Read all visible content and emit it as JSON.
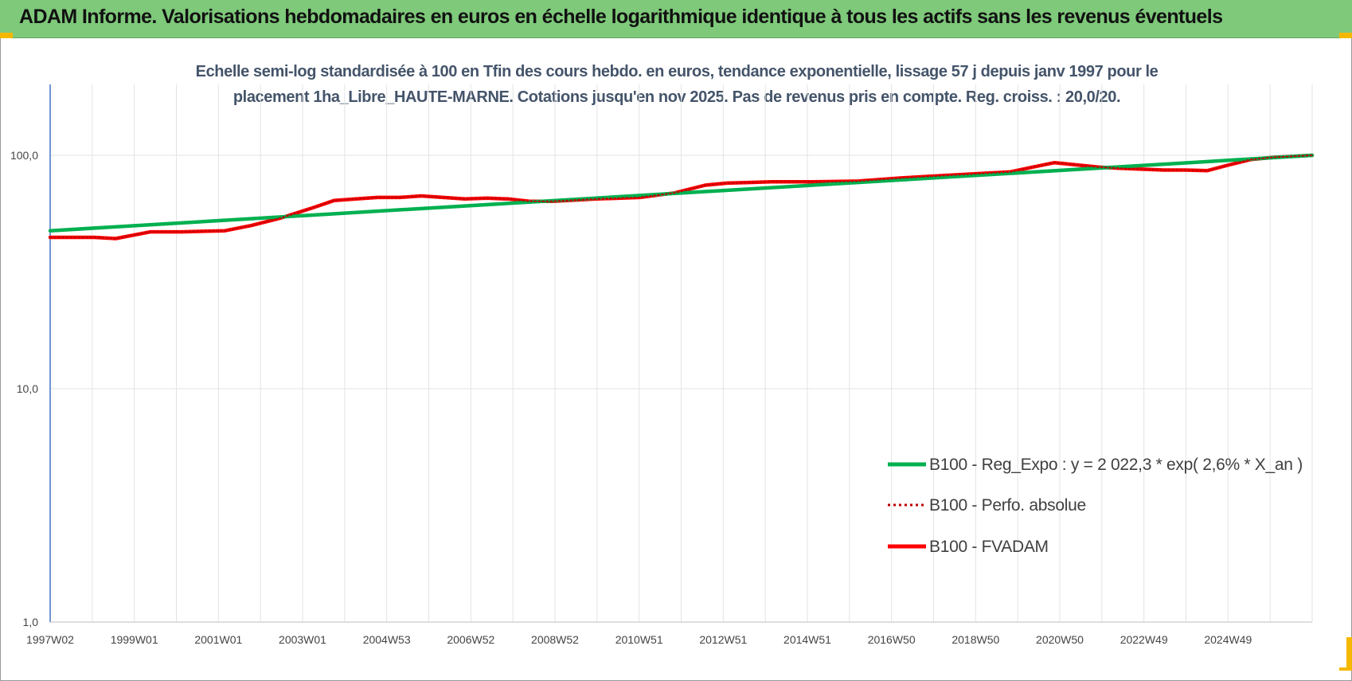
{
  "header": {
    "title": "ADAM Informe. Valorisations hebdomadaires en euros en échelle logarithmique identique à tous les actifs sans les revenus éventuels"
  },
  "chart_data": {
    "type": "line",
    "subtitle_line1": "Echelle semi-log standardisée à 100 en Tfin des cours hebdo. en euros, tendance exponentielle, lissage 57 j depuis janv 1997 pour le",
    "subtitle_line2": "placement 1ha_Libre_HAUTE-MARNE. Cotations jusqu'en nov 2025. Pas de revenus pris en compte. Reg. croiss. : 20,0/20.",
    "y_scale": "log",
    "ylim": [
      1,
      100
    ],
    "y_ticks": [
      "1,0",
      "10,0",
      "100,0"
    ],
    "x_range": [
      1997.0,
      2025.9
    ],
    "x_ticks": [
      "1997W02",
      "1999W01",
      "2001W01",
      "2003W01",
      "2004W53",
      "2006W52",
      "2008W52",
      "2010W51",
      "2012W51",
      "2014W51",
      "2016W50",
      "2018W50",
      "2020W50",
      "2022W49",
      "2024W49"
    ],
    "grid": true,
    "legend_position": "bottom-right",
    "series": [
      {
        "name": "B100 - Reg_Expo : y = 2 022,3 * exp( 2,6% *  X_an )",
        "color": "#00b050",
        "style": "solid",
        "x": [
          1997.0,
          2025.9
        ],
        "values": [
          47.5,
          100.0
        ]
      },
      {
        "name": "B100 - Perfo. absolue",
        "color": "#c00000",
        "style": "dotted",
        "x": [
          1997.0,
          1998.0,
          1998.5,
          1999.3,
          2000.0,
          2001.0,
          2001.6,
          2002.3,
          2003.0,
          2003.5,
          2004.0,
          2004.5,
          2005.0,
          2005.5,
          2006.0,
          2006.5,
          2007.0,
          2007.5,
          2008.0,
          2008.5,
          2009.5,
          2010.5,
          2011.3,
          2012.0,
          2012.5,
          2013.0,
          2013.5,
          2014.5,
          2015.5,
          2016.5,
          2017.5,
          2018.5,
          2019.0,
          2019.5,
          2020.0,
          2020.5,
          2021.0,
          2021.5,
          2022.5,
          2023.0,
          2023.5,
          2024.0,
          2024.5,
          2025.0,
          2025.9
        ],
        "values": [
          44.5,
          44.5,
          44.0,
          47.0,
          47.0,
          47.5,
          50.0,
          54.0,
          59.5,
          64.0,
          65.0,
          66.0,
          66.0,
          67.0,
          66.0,
          65.0,
          65.5,
          65.0,
          63.5,
          63.5,
          65.0,
          66.0,
          69.0,
          74.5,
          76.0,
          76.5,
          77.0,
          77.0,
          77.5,
          80.0,
          82.0,
          84.0,
          85.0,
          89.0,
          93.0,
          91.0,
          89.0,
          88.0,
          86.5,
          86.5,
          86.0,
          91.0,
          96.0,
          98.0,
          100.0
        ]
      },
      {
        "name": "B100 - FVADAM",
        "color": "#ff0000",
        "style": "solid",
        "x": [
          1997.0,
          1998.0,
          1998.5,
          1999.3,
          2000.0,
          2001.0,
          2001.6,
          2002.3,
          2003.0,
          2003.5,
          2004.0,
          2004.5,
          2005.0,
          2005.5,
          2006.0,
          2006.5,
          2007.0,
          2007.5,
          2008.0,
          2008.5,
          2009.5,
          2010.5,
          2011.3,
          2012.0,
          2012.5,
          2013.0,
          2013.5,
          2014.5,
          2015.5,
          2016.5,
          2017.5,
          2018.5,
          2019.0,
          2019.5,
          2020.0,
          2020.5,
          2021.0,
          2021.5,
          2022.5,
          2023.0,
          2023.5,
          2024.0,
          2024.5,
          2025.0,
          2025.9
        ],
        "values": [
          44.5,
          44.5,
          44.0,
          47.0,
          47.0,
          47.5,
          50.0,
          54.0,
          59.5,
          64.0,
          65.0,
          66.0,
          66.0,
          67.0,
          66.0,
          65.0,
          65.5,
          65.0,
          63.5,
          63.5,
          65.0,
          66.0,
          69.0,
          74.5,
          76.0,
          76.5,
          77.0,
          77.0,
          77.5,
          80.0,
          82.0,
          84.0,
          85.0,
          89.0,
          93.0,
          91.0,
          89.0,
          88.0,
          86.5,
          86.5,
          86.0,
          91.0,
          96.0,
          98.0,
          100.0
        ]
      }
    ]
  }
}
